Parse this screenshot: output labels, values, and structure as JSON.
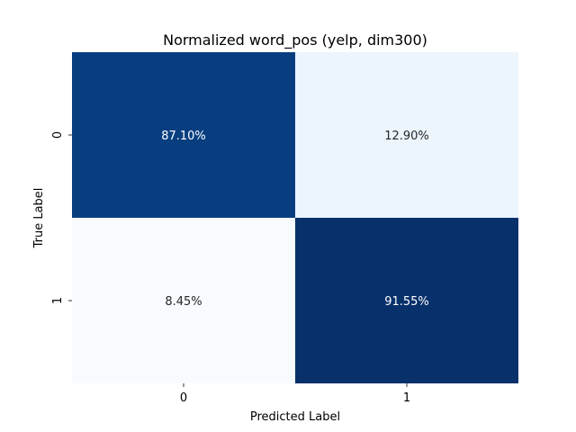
{
  "chart_data": {
    "type": "heatmap",
    "title": "Normalized word_pos (yelp, dim300)",
    "xlabel": "Predicted Label",
    "ylabel": "True Label",
    "x_categories": [
      "0",
      "1"
    ],
    "y_categories": [
      "0",
      "1"
    ],
    "values": [
      [
        87.1,
        12.9
      ],
      [
        8.45,
        91.55
      ]
    ],
    "cell_labels": [
      [
        "87.10%",
        "12.90%"
      ],
      [
        "8.45%",
        "91.55%"
      ]
    ],
    "colormap": "Blues",
    "colorbar": false,
    "grid": false
  }
}
